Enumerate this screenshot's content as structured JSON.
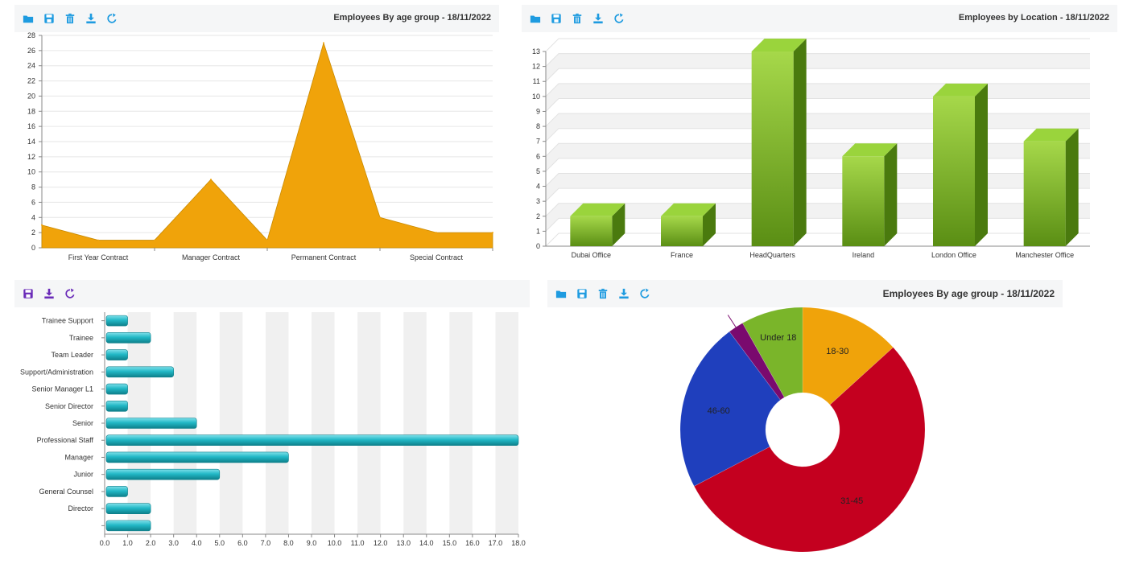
{
  "panels": {
    "area": {
      "title": "Employees By age group - 18/11/2022",
      "toolbar": [
        "folder-icon",
        "save-icon",
        "trash-icon",
        "download-icon",
        "refresh-icon"
      ]
    },
    "bar3d": {
      "title": "Employees by Location - 18/11/2022",
      "toolbar": [
        "folder-icon",
        "save-icon",
        "trash-icon",
        "download-icon",
        "refresh-icon"
      ]
    },
    "hbar": {
      "title": "",
      "toolbar": [
        "save-icon",
        "download-icon",
        "refresh-icon"
      ]
    },
    "donut": {
      "title": "Employees By age group - 18/11/2022",
      "toolbar": [
        "folder-icon",
        "save-icon",
        "trash-icon",
        "download-icon",
        "refresh-icon"
      ]
    }
  },
  "colors": {
    "area": "#f0a30a",
    "bar3d": "#7cb518",
    "hbar": "#22b8c6",
    "donut": [
      "#f0a30a",
      "#c4001f",
      "#1f3fbd",
      "#7a0a6e",
      "#7ab52a"
    ],
    "icon_blue": "#1e9be0",
    "icon_purple": "#6a2bb8"
  },
  "chart_data": [
    {
      "type": "area",
      "categories": [
        "First Year Contract",
        "Manager Contract",
        "Permanent Contract",
        "Special Contract"
      ],
      "x": [
        0,
        0.5,
        1,
        1.5,
        2,
        2.5,
        3,
        3.5,
        4
      ],
      "values": [
        3,
        1,
        1,
        9,
        1,
        27,
        4,
        2,
        2
      ],
      "ylim": [
        0,
        28
      ],
      "yticks": [
        0,
        2,
        4,
        6,
        8,
        10,
        12,
        14,
        16,
        18,
        20,
        22,
        24,
        26,
        28
      ],
      "grid": true
    },
    {
      "type": "bar",
      "style": "3d",
      "categories": [
        "Dubai Office",
        "France",
        "HeadQuarters",
        "Ireland",
        "London Office",
        "Manchester Office"
      ],
      "values": [
        2,
        2,
        13,
        6,
        10,
        7
      ],
      "ylim": [
        0,
        13
      ],
      "yticks": [
        0,
        1,
        2,
        3,
        4,
        5,
        6,
        7,
        8,
        9,
        10,
        11,
        12,
        13
      ],
      "grid": true
    },
    {
      "type": "bar",
      "orientation": "horizontal",
      "categories": [
        "Trainee Support",
        "Trainee",
        "Team Leader",
        "Support/Administration",
        "Senior Manager L1",
        "Senior Director",
        "Senior",
        "Professional Staff",
        "Manager",
        "Junior",
        "General Counsel",
        "Director",
        ""
      ],
      "values": [
        1,
        2,
        1,
        3,
        1,
        1,
        4,
        18,
        8,
        5,
        1,
        2,
        2
      ],
      "xlim": [
        0,
        18
      ],
      "xticks": [
        "0.0",
        "1.0",
        "2.0",
        "3.0",
        "4.0",
        "5.0",
        "6.0",
        "7.0",
        "8.0",
        "9.0",
        "10.0",
        "11.0",
        "12.0",
        "13.0",
        "14.0",
        "15.0",
        "16.0",
        "17.0",
        "18.0"
      ],
      "grid": true
    },
    {
      "type": "pie",
      "donut": true,
      "labels": [
        "18-30",
        "31-45",
        "46-60",
        "",
        "Under 18"
      ],
      "values": [
        13,
        53,
        22,
        2,
        8
      ]
    }
  ]
}
